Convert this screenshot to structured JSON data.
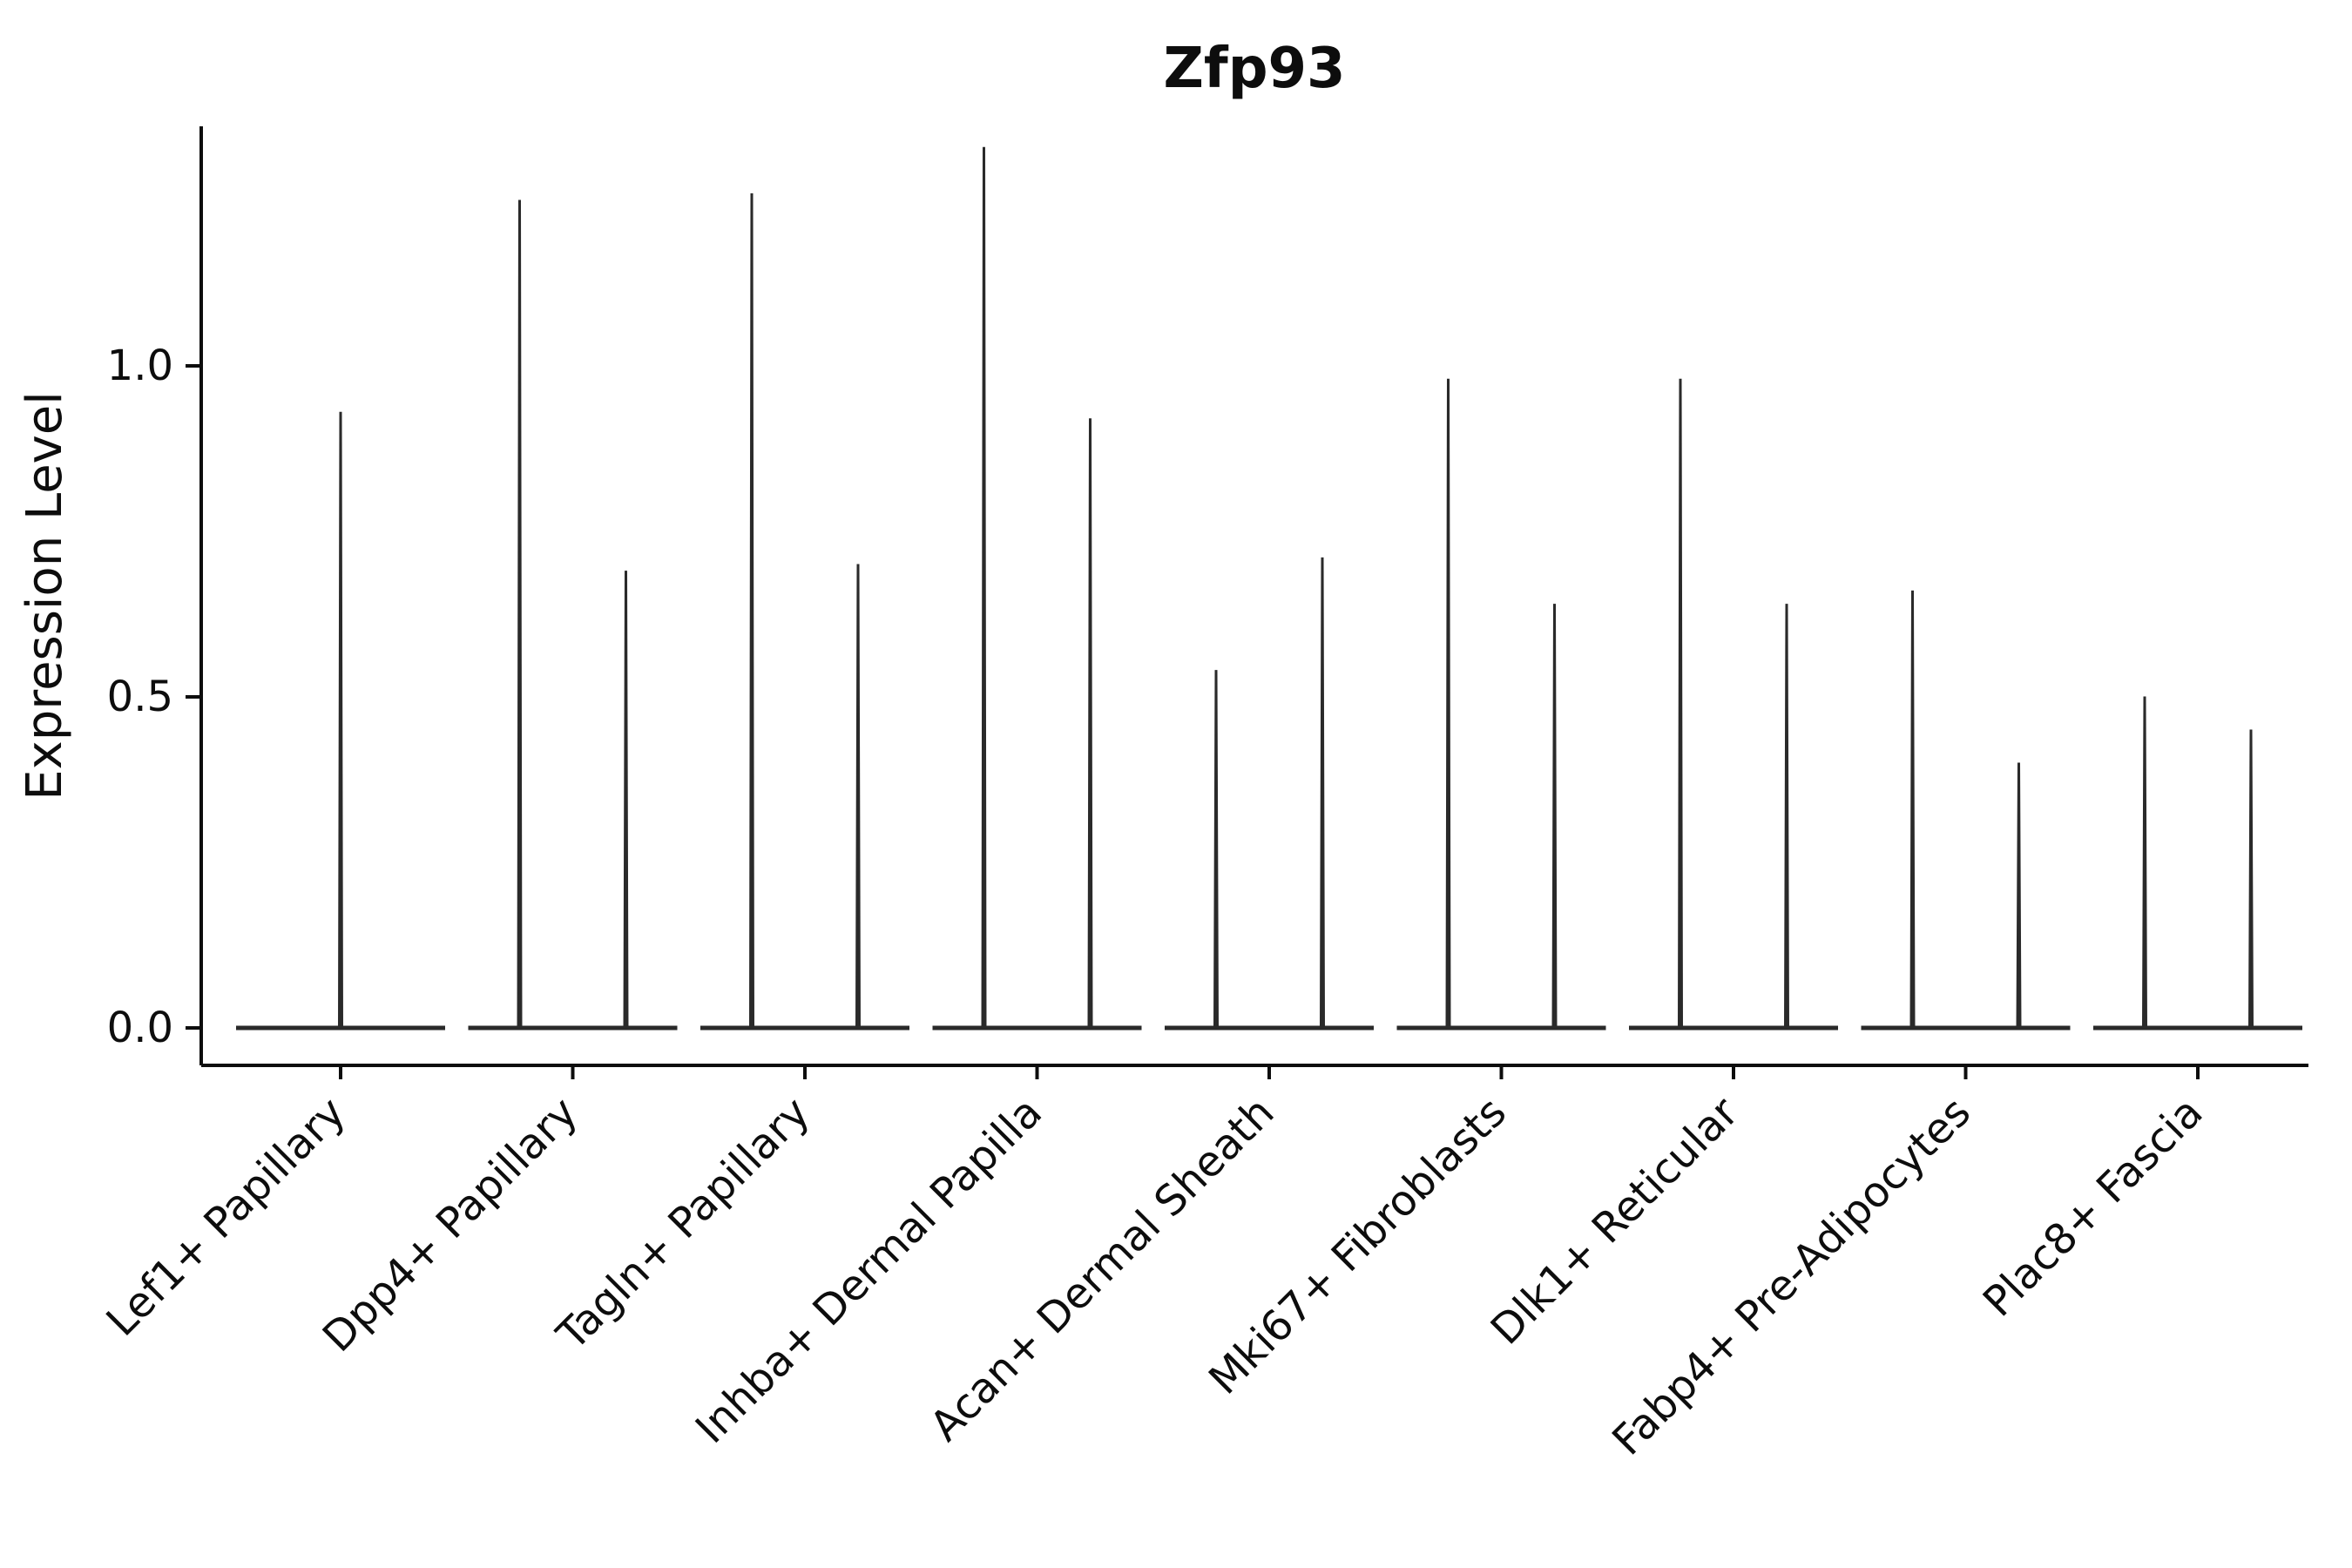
{
  "chart_data": {
    "type": "violin",
    "title": "Zfp93",
    "xlabel": "",
    "ylabel": "Expression Level",
    "ylim": [
      -0.06,
      1.37
    ],
    "yticks": [
      "0.0",
      "0.5",
      "1.0"
    ],
    "ytick_values": [
      0.0,
      0.5,
      1.0
    ],
    "grid": false,
    "legend": "none",
    "categories": [
      "Lef1+ Papillary",
      "Dpp4+ Papillary",
      "Tagln+ Papillary",
      "Inhba+ Dermal Papilla",
      "Acan+ Dermal Sheath",
      "Mki67+ Fibroblasts",
      "Dlk1+ Reticular",
      "Fabp4+ Pre-Adipocytes",
      "Plac8+ Fascia"
    ],
    "violins_per_category": [
      [
        0.93
      ],
      [
        1.25,
        0.69
      ],
      [
        1.26,
        0.7
      ],
      [
        1.33,
        0.92
      ],
      [
        0.54,
        0.71
      ],
      [
        0.98,
        0.64
      ],
      [
        0.98,
        0.64
      ],
      [
        0.66,
        0.4
      ],
      [
        0.5,
        0.45
      ]
    ],
    "violin_shape_note": "Each violin is a wide flat base at expression 0 with a thin tapering spike rising to its maximum value",
    "violin_color": "#2a2a2a",
    "axis_color": "#0d0d0d",
    "background": "#ffffff"
  }
}
